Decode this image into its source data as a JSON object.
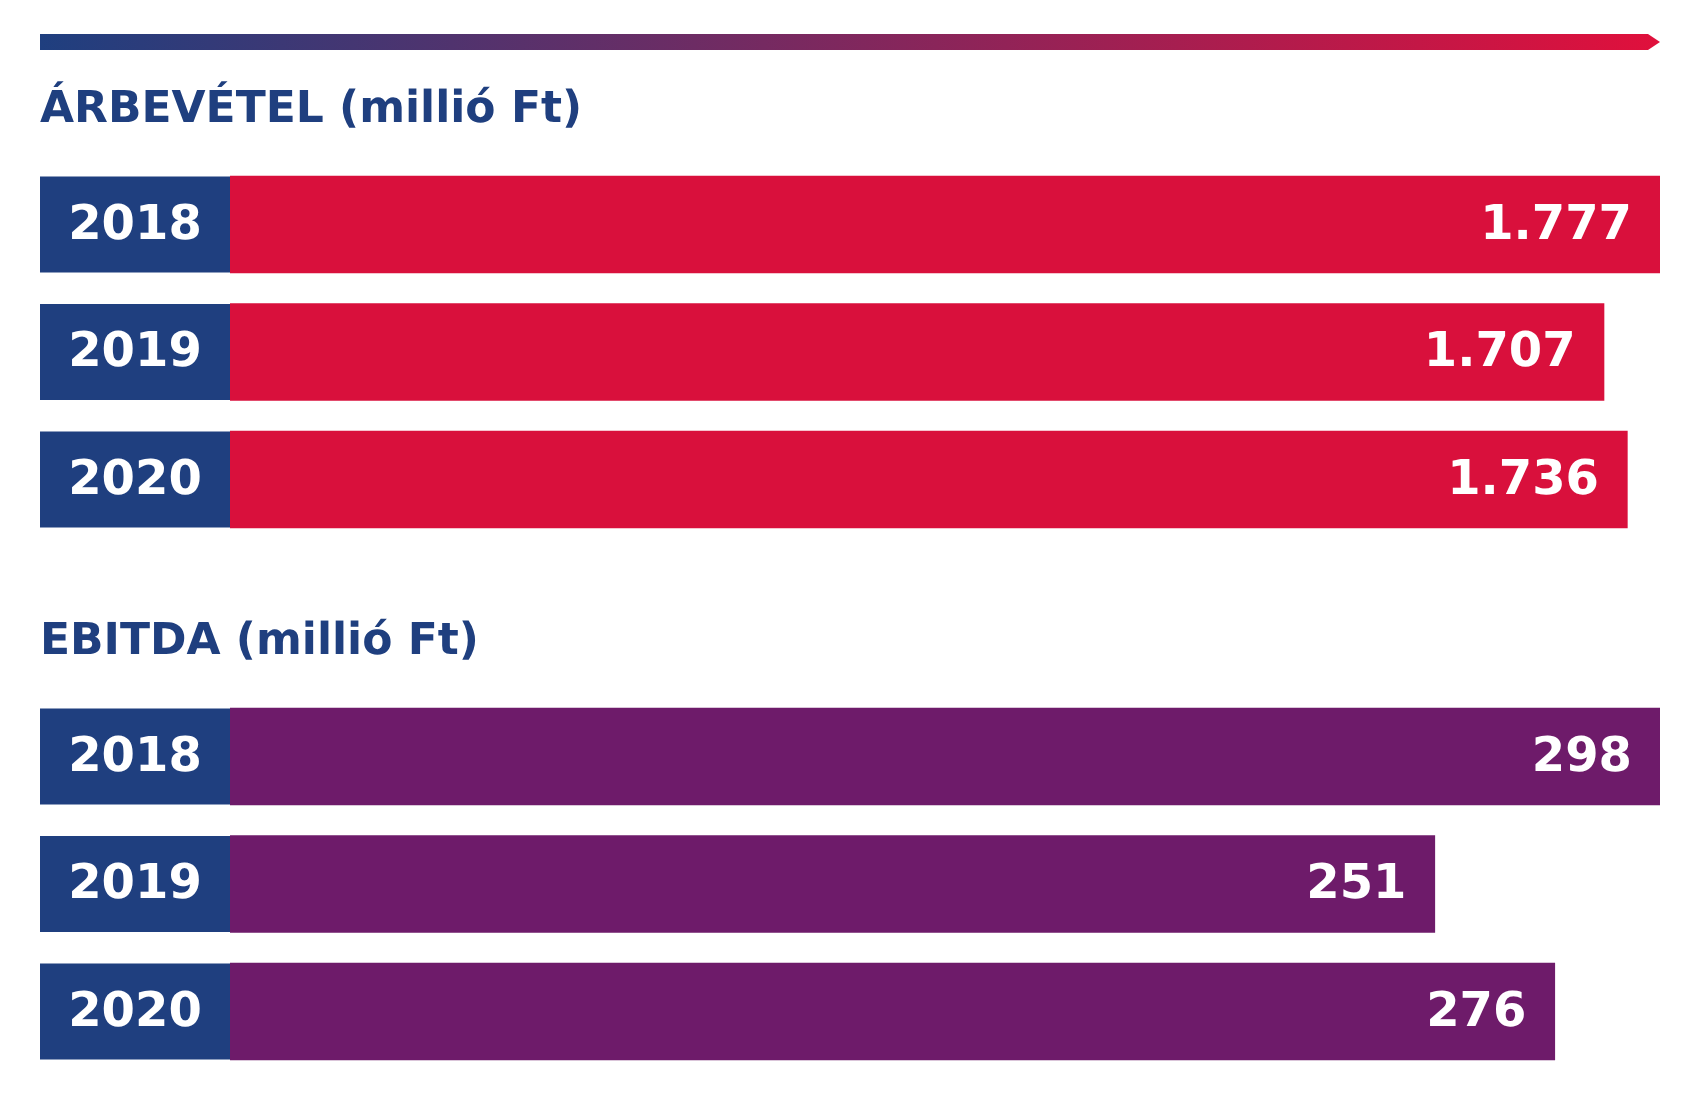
{
  "chart_data": [
    {
      "type": "bar",
      "orientation": "horizontal",
      "title": "ÁRBEVÉTEL (millió Ft)",
      "categories": [
        "2018",
        "2019",
        "2020"
      ],
      "values": [
        1777,
        1707,
        1736
      ],
      "value_labels": [
        "1.777",
        "1.707",
        "1.736"
      ],
      "color": "#d9103c",
      "grid": false,
      "legend": false
    },
    {
      "type": "bar",
      "orientation": "horizontal",
      "title": "EBITDA (millió Ft)",
      "categories": [
        "2018",
        "2019",
        "2020"
      ],
      "values": [
        298,
        251,
        276
      ],
      "value_labels": [
        "298",
        "251",
        "276"
      ],
      "color": "#6e1b6a",
      "grid": false,
      "legend": false
    }
  ]
}
